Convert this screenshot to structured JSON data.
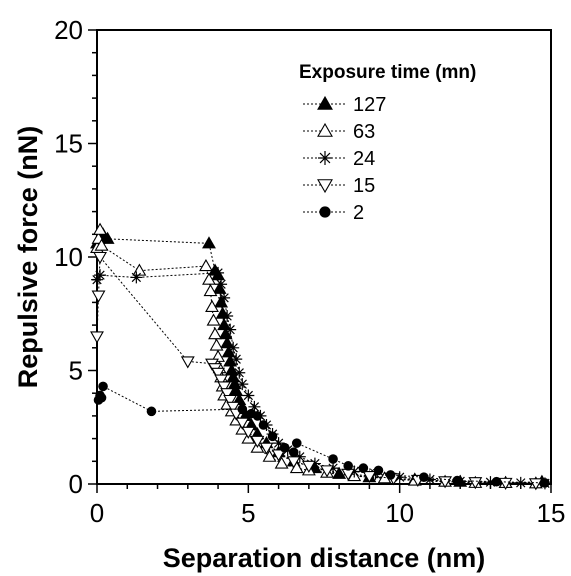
{
  "chart_data": {
    "type": "scatter",
    "xlabel": "Separation distance (nm)",
    "ylabel": "Repulsive force (nN)",
    "xlim": [
      0,
      15
    ],
    "ylim": [
      0,
      20
    ],
    "xticks": [
      "0",
      "5",
      "10",
      "15"
    ],
    "yticks": [
      "0",
      "5",
      "10",
      "15",
      "20"
    ],
    "legend": {
      "title": "Exposure time (mn)",
      "placement": "top-right"
    },
    "line_style": "dotted",
    "series": [
      {
        "name": "127",
        "marker": "filled-triangle-up",
        "x": [
          0.0,
          0.1,
          0.2,
          0.35,
          3.7,
          3.9,
          4.0,
          4.05,
          4.1,
          4.15,
          4.2,
          4.25,
          4.3,
          4.35,
          4.4,
          4.45,
          4.5,
          4.55,
          4.6,
          4.7,
          4.8,
          4.9,
          5.1,
          5.3,
          5.6,
          6.0,
          6.5,
          7.2,
          8.0,
          9.0,
          10.5,
          12.0,
          13.5,
          14.7
        ],
        "y": [
          10.6,
          10.9,
          11.0,
          10.8,
          10.6,
          9.4,
          9.2,
          8.6,
          8.0,
          7.5,
          7.0,
          6.6,
          6.2,
          5.8,
          5.4,
          5.0,
          4.7,
          4.4,
          4.1,
          3.7,
          3.3,
          3.0,
          2.6,
          2.2,
          1.8,
          1.4,
          1.0,
          0.7,
          0.45,
          0.3,
          0.2,
          0.1,
          0.05,
          0.1
        ]
      },
      {
        "name": "63",
        "marker": "open-triangle-up",
        "x": [
          0.0,
          0.05,
          0.1,
          0.15,
          1.4,
          3.6,
          3.7,
          3.75,
          3.8,
          3.85,
          3.9,
          3.95,
          4.0,
          4.05,
          4.1,
          4.15,
          4.2,
          4.3,
          4.45,
          4.6,
          4.8,
          5.0,
          5.3,
          5.7,
          6.1,
          6.6,
          7.0,
          7.6,
          8.5,
          9.5,
          10.5,
          11.5,
          12.5,
          13.5,
          14.5
        ],
        "y": [
          10.4,
          10.8,
          11.2,
          10.5,
          9.4,
          9.6,
          9.0,
          8.5,
          7.8,
          7.2,
          6.6,
          6.1,
          5.6,
          5.1,
          4.7,
          4.3,
          3.9,
          3.5,
          3.2,
          2.8,
          2.4,
          2.0,
          1.6,
          1.2,
          0.9,
          0.7,
          0.6,
          0.5,
          0.35,
          0.25,
          0.15,
          0.1,
          0.05,
          0.05,
          0.03
        ]
      },
      {
        "name": "24",
        "marker": "asterisk",
        "x": [
          0.0,
          0.1,
          1.3,
          4.0,
          4.1,
          4.2,
          4.3,
          4.4,
          4.5,
          4.6,
          4.7,
          4.8,
          5.0,
          5.2,
          5.4,
          5.6,
          5.8,
          6.0,
          6.3,
          6.7,
          7.2,
          7.8,
          8.5,
          9.2,
          10.0,
          11.0,
          12.0,
          13.0,
          14.0,
          14.8
        ],
        "y": [
          9.0,
          9.2,
          9.1,
          9.3,
          8.8,
          8.2,
          7.4,
          6.8,
          6.0,
          5.5,
          4.9,
          4.4,
          3.9,
          3.4,
          3.0,
          2.6,
          2.2,
          1.8,
          1.5,
          1.2,
          0.9,
          0.7,
          0.55,
          0.45,
          0.3,
          0.2,
          0.12,
          0.08,
          0.05,
          0.03
        ]
      },
      {
        "name": "15",
        "marker": "open-triangle-down",
        "x": [
          0.0,
          0.05,
          0.1,
          3.0,
          3.8,
          3.9,
          4.0,
          4.1,
          4.2,
          4.3,
          4.4,
          4.5,
          4.6,
          4.8,
          5.0,
          5.3,
          5.6,
          6.0,
          6.5,
          7.0,
          7.6,
          8.3,
          9.0,
          9.8,
          10.6,
          11.5,
          12.5,
          13.5,
          14.5
        ],
        "y": [
          6.5,
          8.3,
          10.0,
          5.4,
          5.3,
          5.1,
          4.9,
          4.6,
          4.3,
          4.0,
          3.7,
          3.4,
          3.1,
          2.7,
          2.3,
          1.9,
          1.6,
          1.3,
          1.0,
          0.8,
          0.6,
          0.45,
          0.35,
          0.25,
          0.18,
          0.12,
          0.08,
          0.05,
          0.03
        ]
      },
      {
        "name": "2",
        "marker": "filled-circle",
        "x": [
          0.05,
          0.1,
          0.15,
          0.2,
          1.8,
          4.8,
          5.1,
          5.3,
          5.5,
          5.8,
          6.2,
          6.5,
          6.6,
          7.8,
          8.3,
          8.8,
          9.3,
          9.7,
          10.8,
          11.9,
          13.2,
          14.8
        ],
        "y": [
          3.7,
          3.9,
          3.8,
          4.3,
          3.2,
          3.3,
          3.1,
          3.0,
          2.6,
          2.1,
          1.6,
          1.4,
          1.8,
          1.1,
          0.8,
          0.7,
          0.6,
          0.4,
          0.3,
          0.15,
          0.1,
          0.05
        ]
      }
    ]
  }
}
